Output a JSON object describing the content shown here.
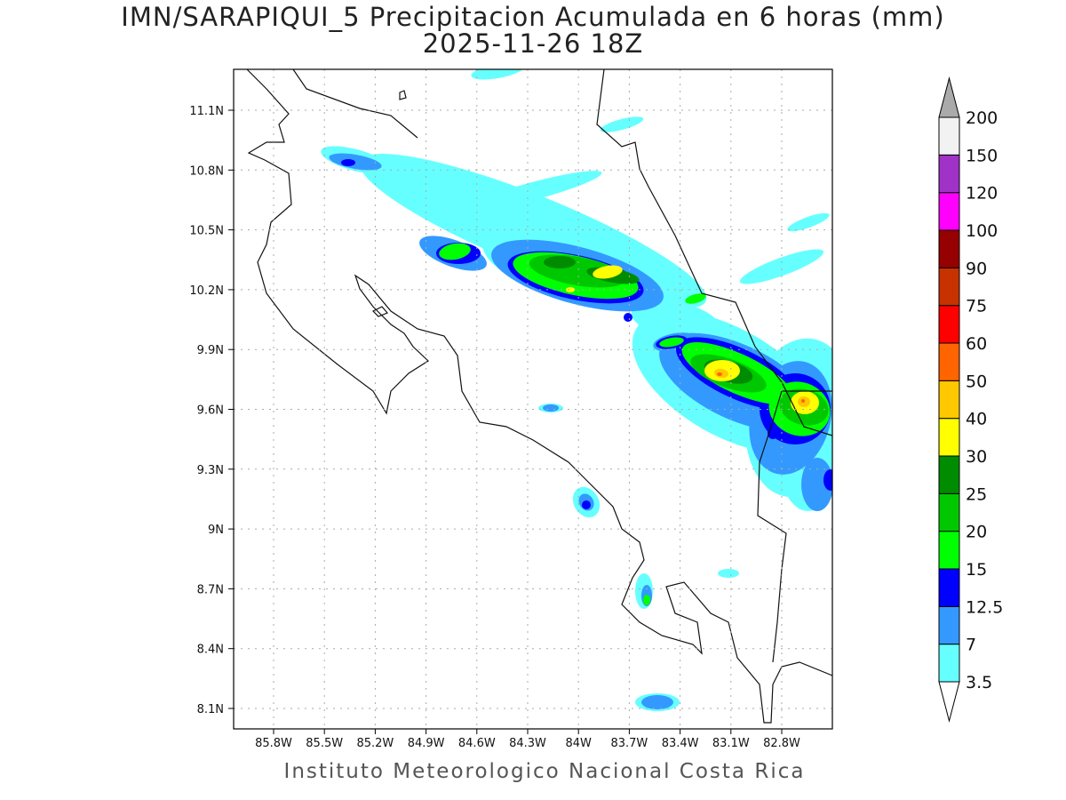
{
  "title": {
    "line1": "IMN/SARAPIQUI_5 Precipitacion Acumulada en 6 horas (mm)",
    "line2": "2025-11-26 18Z"
  },
  "credit": "Instituto Meteorologico Nacional Costa Rica",
  "map": {
    "extent_lon": [
      -86.05,
      -82.5
    ],
    "extent_lat": [
      8.0,
      11.3
    ],
    "grid": true,
    "lon_ticks": [
      "85.8W",
      "85.5W",
      "85.2W",
      "84.9W",
      "84.6W",
      "84.3W",
      "84W",
      "83.7W",
      "83.4W",
      "83.1W",
      "82.8W"
    ],
    "lat_ticks": [
      "11.1N",
      "10.8N",
      "10.5N",
      "10.2N",
      "9.9N",
      "9.6N",
      "9.3N",
      "9N",
      "8.7N",
      "8.4N",
      "8.1N"
    ]
  },
  "colorbar": {
    "unit": "mm",
    "levels": [
      "3.5",
      "7",
      "12.5",
      "15",
      "20",
      "25",
      "30",
      "40",
      "50",
      "60",
      "75",
      "90",
      "100",
      "120",
      "150",
      "200"
    ],
    "colors": [
      "#66ffff",
      "#3399ff",
      "#0000ff",
      "#00ff00",
      "#00c800",
      "#008c00",
      "#ffff00",
      "#ffc800",
      "#ff6400",
      "#ff0000",
      "#c83200",
      "#960000",
      "#ff00ff",
      "#a032c8",
      "#f2f2f2"
    ],
    "above_color": "#aaaaaa",
    "below_color": "#ffffff"
  }
}
